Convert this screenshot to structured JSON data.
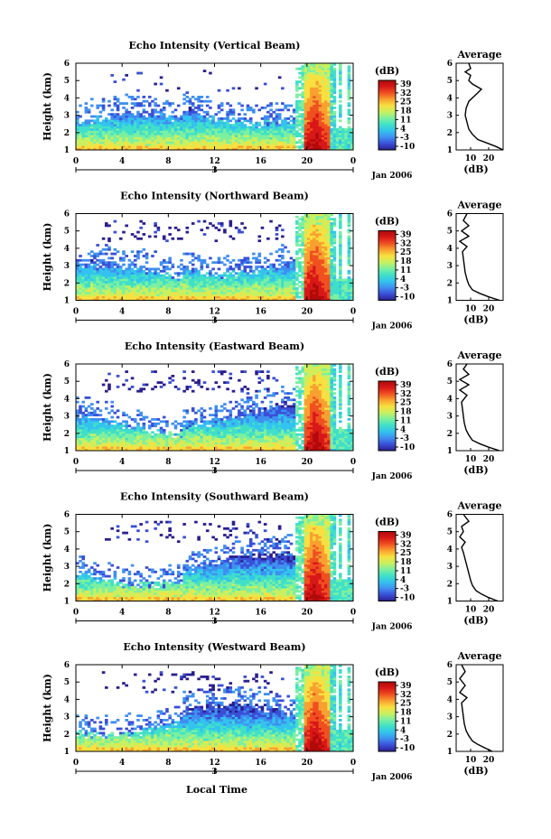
{
  "figure": {
    "panels": [
      {
        "title": "Echo Intensity (Vertical Beam)",
        "avg_title": "Average"
      },
      {
        "title": "Echo Intensity (Northward Beam)",
        "avg_title": "Average"
      },
      {
        "title": "Echo Intensity (Eastward Beam)",
        "avg_title": "Average"
      },
      {
        "title": "Echo Intensity (Southward Beam)",
        "avg_title": "Average"
      },
      {
        "title": "Echo Intensity (Westward Beam)",
        "avg_title": "Average"
      }
    ],
    "ylabel": "Height (km)",
    "xlabel": "Local Time",
    "date_label": "Jan 2006",
    "day_label": "3",
    "colorbar_unit": "(dB)",
    "avg_xlabel": "(dB)",
    "colorbar_ticks": [
      "39",
      "32",
      "25",
      "18",
      "11",
      "4",
      "-3",
      "-10"
    ],
    "colorbar_colors": [
      "#2a1f8f",
      "#3a4fd8",
      "#3f8ff0",
      "#33c3ee",
      "#40e0c8",
      "#7cf0a0",
      "#c8f060",
      "#f8e040",
      "#f8a030",
      "#f05020",
      "#d81818",
      "#b00a0a"
    ]
  },
  "chart_data": [
    {
      "type": "heatmap",
      "title": "Echo Intensity (Vertical Beam)",
      "xlabel": "",
      "ylabel": "Height (km)",
      "xlim": [
        0,
        24
      ],
      "ylim": [
        1,
        6
      ],
      "xticks": [
        "0",
        "4",
        "8",
        "12",
        "16",
        "20",
        "0"
      ],
      "yticks": [
        "1",
        "2",
        "3",
        "4",
        "5",
        "6"
      ],
      "color_range_db": [
        -10,
        39
      ],
      "profile": {
        "type": "line",
        "title": "Average",
        "xlabel": "(dB)",
        "ylim": [
          1,
          6
        ],
        "xticks": [
          "10",
          "20"
        ],
        "x": [
          30,
          24,
          19,
          14,
          11,
          9,
          8,
          7,
          7.5,
          9,
          13,
          16,
          11,
          9,
          10,
          7,
          10,
          9
        ],
        "y": [
          1.0,
          1.2,
          1.4,
          1.6,
          1.9,
          2.2,
          2.6,
          3.0,
          3.4,
          3.8,
          4.2,
          4.5,
          4.8,
          5.0,
          5.3,
          5.5,
          5.7,
          6.0
        ]
      }
    },
    {
      "type": "heatmap",
      "title": "Echo Intensity (Northward Beam)",
      "xlabel": "",
      "ylabel": "Height (km)",
      "xlim": [
        0,
        24
      ],
      "ylim": [
        1,
        6
      ],
      "xticks": [
        "0",
        "4",
        "8",
        "12",
        "16",
        "20",
        "0"
      ],
      "yticks": [
        "1",
        "2",
        "3",
        "4",
        "5",
        "6"
      ],
      "color_range_db": [
        -10,
        39
      ],
      "profile": {
        "type": "line",
        "title": "Average",
        "xlabel": "(dB)",
        "ylim": [
          1,
          6
        ],
        "xticks": [
          "10",
          "20"
        ],
        "x": [
          26,
          20,
          15,
          11,
          9,
          8,
          7,
          6.5,
          6,
          5.5,
          8,
          4,
          9,
          5,
          9,
          6,
          8
        ],
        "y": [
          1.0,
          1.2,
          1.4,
          1.6,
          1.9,
          2.2,
          2.6,
          3.0,
          3.4,
          3.8,
          4.1,
          4.4,
          4.7,
          5.0,
          5.3,
          5.6,
          6.0
        ]
      }
    },
    {
      "type": "heatmap",
      "title": "Echo Intensity (Eastward Beam)",
      "xlabel": "",
      "ylabel": "Height (km)",
      "xlim": [
        0,
        24
      ],
      "ylim": [
        1,
        6
      ],
      "xticks": [
        "0",
        "4",
        "8",
        "12",
        "16",
        "20",
        "0"
      ],
      "yticks": [
        "1",
        "2",
        "3",
        "4",
        "5",
        "6"
      ],
      "color_range_db": [
        -10,
        39
      ],
      "profile": {
        "type": "line",
        "title": "Average",
        "xlabel": "(dB)",
        "ylim": [
          1,
          6
        ],
        "xticks": [
          "10",
          "20"
        ],
        "x": [
          26,
          20,
          15,
          11,
          9,
          7.5,
          6.5,
          6,
          5.5,
          5,
          8,
          4,
          9,
          4,
          9,
          6,
          8
        ],
        "y": [
          1.0,
          1.2,
          1.4,
          1.6,
          1.9,
          2.2,
          2.6,
          3.0,
          3.4,
          3.8,
          4.2,
          4.5,
          4.8,
          5.1,
          5.4,
          5.7,
          6.0
        ]
      }
    },
    {
      "type": "heatmap",
      "title": "Echo Intensity (Southward Beam)",
      "xlabel": "",
      "ylabel": "Height (km)",
      "xlim": [
        0,
        24
      ],
      "ylim": [
        1,
        6
      ],
      "xticks": [
        "0",
        "4",
        "8",
        "12",
        "16",
        "20",
        "0"
      ],
      "yticks": [
        "1",
        "2",
        "3",
        "4",
        "5",
        "6"
      ],
      "color_range_db": [
        -10,
        39
      ],
      "profile": {
        "type": "line",
        "title": "Average",
        "xlabel": "(dB)",
        "ylim": [
          1,
          6
        ],
        "xticks": [
          "10",
          "20"
        ],
        "x": [
          25,
          20,
          16,
          13,
          11,
          10,
          9,
          8,
          7,
          6,
          5,
          7,
          4,
          6,
          5,
          9,
          6
        ],
        "y": [
          1.0,
          1.2,
          1.4,
          1.6,
          1.9,
          2.2,
          2.6,
          3.0,
          3.4,
          3.8,
          4.1,
          4.4,
          4.7,
          5.0,
          5.3,
          5.6,
          6.0
        ]
      }
    },
    {
      "type": "heatmap",
      "title": "Echo Intensity (Westward Beam)",
      "xlabel": "Local Time",
      "ylabel": "Height (km)",
      "xlim": [
        0,
        24
      ],
      "ylim": [
        1,
        6
      ],
      "xticks": [
        "0",
        "4",
        "8",
        "12",
        "16",
        "20",
        "0"
      ],
      "yticks": [
        "1",
        "2",
        "3",
        "4",
        "5",
        "6"
      ],
      "color_range_db": [
        -10,
        39
      ],
      "profile": {
        "type": "line",
        "title": "Average",
        "xlabel": "(dB)",
        "ylim": [
          1,
          6
        ],
        "xticks": [
          "10",
          "20"
        ],
        "x": [
          22,
          18,
          14,
          11,
          9,
          7.5,
          6.5,
          6,
          5.5,
          5,
          8,
          4,
          7,
          4,
          7,
          5
        ],
        "y": [
          1.0,
          1.2,
          1.4,
          1.6,
          1.9,
          2.2,
          2.6,
          3.0,
          3.4,
          3.8,
          4.1,
          4.4,
          4.8,
          5.2,
          5.6,
          6.0
        ]
      }
    }
  ]
}
